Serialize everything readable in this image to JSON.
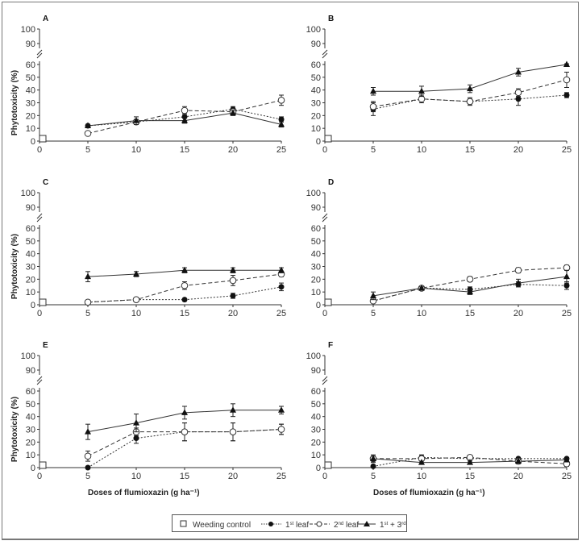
{
  "chart_data": [
    {
      "type": "line",
      "panel": "A",
      "ylabel": "Phytotoxicity (%)",
      "xlabel": "",
      "x": [
        5,
        10,
        15,
        20,
        25
      ],
      "xlim": [
        0,
        25
      ],
      "ylim": [
        0,
        100
      ],
      "y_axis_break": [
        60,
        90
      ],
      "yticks": [
        0,
        10,
        20,
        30,
        40,
        50,
        60,
        90,
        100
      ],
      "xticks": [
        0,
        5,
        10,
        15,
        20,
        25
      ],
      "control": {
        "x": 0,
        "y": 0
      },
      "series": [
        {
          "name": "1st leaf",
          "values": [
            12,
            15,
            19,
            25,
            17
          ],
          "err": [
            1,
            2,
            3,
            2,
            2
          ]
        },
        {
          "name": "2nd leaf",
          "values": [
            6,
            15,
            24,
            23,
            32
          ],
          "err": [
            1,
            2,
            3,
            2,
            4
          ]
        },
        {
          "name": "1st + 3rd leaf",
          "values": [
            12,
            16,
            16,
            22,
            13
          ],
          "err": [
            1,
            3,
            2,
            2,
            2
          ]
        }
      ]
    },
    {
      "type": "line",
      "panel": "B",
      "ylabel": "",
      "xlabel": "",
      "x": [
        5,
        10,
        15,
        20,
        25
      ],
      "xlim": [
        0,
        25
      ],
      "ylim": [
        0,
        100
      ],
      "y_axis_break": [
        60,
        90
      ],
      "yticks": [
        0,
        10,
        20,
        30,
        40,
        50,
        60,
        90,
        100
      ],
      "xticks": [
        0,
        5,
        10,
        15,
        20,
        25
      ],
      "control": {
        "x": 0,
        "y": 0
      },
      "series": [
        {
          "name": "1st leaf",
          "values": [
            25,
            33,
            31,
            33,
            36
          ],
          "err": [
            5,
            3,
            3,
            5,
            2
          ]
        },
        {
          "name": "2nd leaf",
          "values": [
            27,
            33,
            31,
            38,
            48
          ],
          "err": [
            4,
            3,
            2,
            3,
            6
          ]
        },
        {
          "name": "1st + 3rd leaf",
          "values": [
            39,
            39,
            41,
            54,
            60
          ],
          "err": [
            3,
            4,
            3,
            3,
            1
          ]
        }
      ]
    },
    {
      "type": "line",
      "panel": "C",
      "ylabel": "Phytotoxicity (%)",
      "xlabel": "",
      "x": [
        5,
        10,
        15,
        20,
        25
      ],
      "xlim": [
        0,
        25
      ],
      "ylim": [
        0,
        100
      ],
      "y_axis_break": [
        60,
        90
      ],
      "yticks": [
        0,
        10,
        20,
        30,
        40,
        50,
        60,
        90,
        100
      ],
      "xticks": [
        0,
        5,
        10,
        15,
        20,
        25
      ],
      "control": {
        "x": 0,
        "y": 0
      },
      "series": [
        {
          "name": "1st leaf",
          "values": [
            2,
            4,
            4,
            7,
            14
          ],
          "err": [
            1,
            1,
            1,
            2,
            3
          ]
        },
        {
          "name": "2nd leaf",
          "values": [
            2,
            4,
            15,
            19,
            24
          ],
          "err": [
            1,
            1,
            3,
            4,
            2
          ]
        },
        {
          "name": "1st + 3rd leaf",
          "values": [
            22,
            24,
            27,
            27,
            27
          ],
          "err": [
            4,
            2,
            2,
            2,
            2
          ]
        }
      ]
    },
    {
      "type": "line",
      "panel": "D",
      "ylabel": "",
      "xlabel": "",
      "x": [
        5,
        10,
        15,
        20,
        25
      ],
      "xlim": [
        0,
        25
      ],
      "ylim": [
        0,
        100
      ],
      "y_axis_break": [
        60,
        90
      ],
      "yticks": [
        0,
        10,
        20,
        30,
        40,
        50,
        60,
        90,
        100
      ],
      "xticks": [
        0,
        5,
        10,
        15,
        20,
        25
      ],
      "control": {
        "x": 0,
        "y": 0
      },
      "series": [
        {
          "name": "1st leaf",
          "values": [
            3,
            13,
            12,
            16,
            15
          ],
          "err": [
            1,
            1,
            2,
            2,
            3
          ]
        },
        {
          "name": "2nd leaf",
          "values": [
            3,
            13,
            20,
            27,
            29
          ],
          "err": [
            1,
            1,
            2,
            2,
            2
          ]
        },
        {
          "name": "1st + 3rd leaf",
          "values": [
            7,
            13,
            10,
            17,
            22
          ],
          "err": [
            3,
            1,
            2,
            3,
            5
          ]
        }
      ]
    },
    {
      "type": "line",
      "panel": "E",
      "ylabel": "Phytotoxicity (%)",
      "xlabel": "Doses of flumioxazin (g ha⁻¹)",
      "x": [
        5,
        10,
        15,
        20,
        25
      ],
      "xlim": [
        0,
        25
      ],
      "ylim": [
        0,
        100
      ],
      "y_axis_break": [
        60,
        90
      ],
      "yticks": [
        0,
        10,
        20,
        30,
        40,
        50,
        60,
        90,
        100
      ],
      "xticks": [
        0,
        5,
        10,
        15,
        20,
        25
      ],
      "control": {
        "x": 0,
        "y": 0
      },
      "series": [
        {
          "name": "1st leaf",
          "values": [
            0,
            23,
            28,
            28,
            30
          ],
          "err": [
            1,
            4,
            7,
            7,
            4
          ]
        },
        {
          "name": "2nd leaf",
          "values": [
            9,
            28,
            28,
            28,
            30
          ],
          "err": [
            4,
            3,
            7,
            7,
            4
          ]
        },
        {
          "name": "1st + 3rd leaf",
          "values": [
            28,
            35,
            43,
            45,
            45
          ],
          "err": [
            6,
            7,
            5,
            5,
            3
          ]
        }
      ]
    },
    {
      "type": "line",
      "panel": "F",
      "ylabel": "",
      "xlabel": "Doses of flumioxazin (g ha⁻¹)",
      "x": [
        5,
        10,
        15,
        20,
        25
      ],
      "xlim": [
        0,
        25
      ],
      "ylim": [
        0,
        100
      ],
      "y_axis_break": [
        60,
        90
      ],
      "yticks": [
        0,
        10,
        20,
        30,
        40,
        50,
        60,
        90,
        100
      ],
      "xticks": [
        0,
        5,
        10,
        15,
        20,
        25
      ],
      "control": {
        "x": 0,
        "y": 0
      },
      "series": [
        {
          "name": "1st leaf",
          "values": [
            1,
            8,
            7,
            7,
            7
          ],
          "err": [
            1,
            2,
            1,
            1,
            1
          ]
        },
        {
          "name": "2nd leaf",
          "values": [
            7,
            7,
            8,
            5,
            3
          ],
          "err": [
            3,
            1,
            1,
            2,
            2
          ]
        },
        {
          "name": "1st + 3rd leaf",
          "values": [
            7,
            4,
            4,
            5,
            6
          ],
          "err": [
            2,
            1,
            1,
            1,
            1
          ]
        }
      ]
    }
  ],
  "legend": {
    "items": [
      {
        "label": "Weeding control",
        "marker": "open-square"
      },
      {
        "label": "1st leaf",
        "marker": "filled-circle",
        "line": "dotted"
      },
      {
        "label": "2nd leaf",
        "marker": "open-circle",
        "line": "dashed"
      },
      {
        "label": "1st + 3rd leaf",
        "marker": "filled-triangle",
        "line": "solid"
      }
    ]
  }
}
